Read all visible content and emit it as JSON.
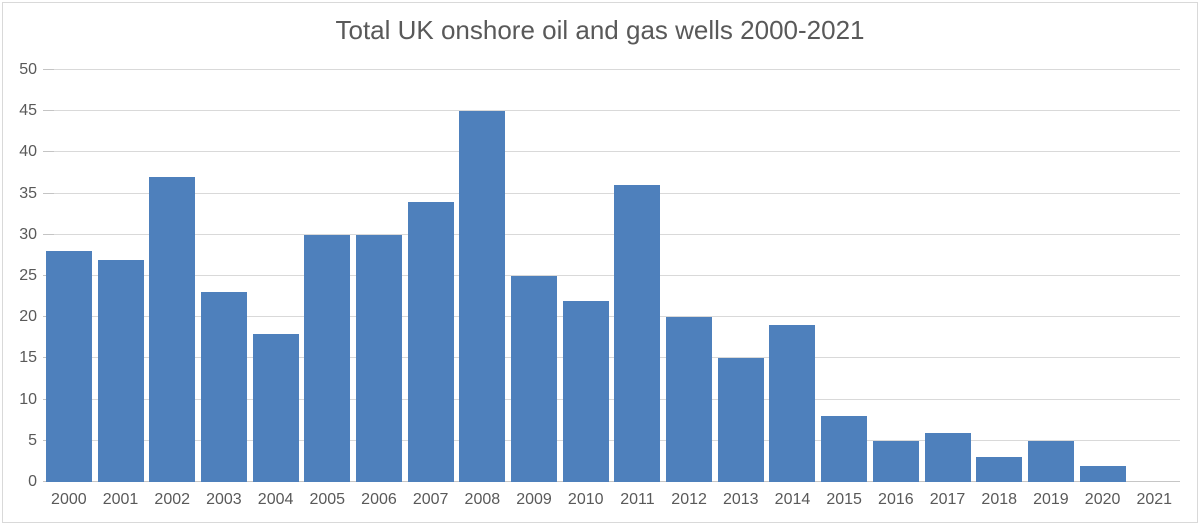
{
  "chart_data": {
    "type": "bar",
    "title": "Total UK onshore oil and gas wells 2000-2021",
    "categories": [
      "2000",
      "2001",
      "2002",
      "2003",
      "2004",
      "2005",
      "2006",
      "2007",
      "2008",
      "2009",
      "2010",
      "2011",
      "2012",
      "2013",
      "2014",
      "2015",
      "2016",
      "2017",
      "2018",
      "2019",
      "2020",
      "2021"
    ],
    "values": [
      28,
      27,
      37,
      23,
      18,
      30,
      30,
      34,
      45,
      25,
      22,
      36,
      20,
      15,
      19,
      8,
      5,
      6,
      3,
      5,
      2,
      0
    ],
    "xlabel": "",
    "ylabel": "",
    "ylim": [
      0,
      50
    ],
    "y_ticks": [
      0,
      5,
      10,
      15,
      20,
      25,
      30,
      35,
      40,
      45,
      50
    ],
    "grid": "horizontal-only",
    "legend": "none",
    "colors": {
      "bar": "#4e80bc",
      "gridline": "#d9d9d9",
      "axis_line": "#c6c6c6",
      "text": "#595959",
      "frame_border": "#d9d9d9",
      "background": "#ffffff"
    }
  }
}
